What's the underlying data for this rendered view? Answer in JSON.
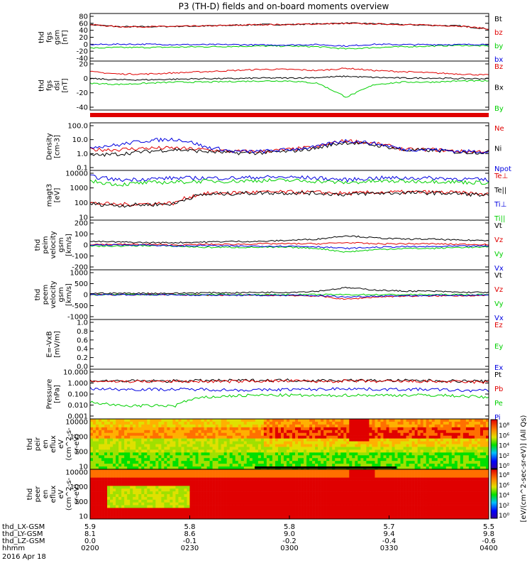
{
  "title": "P3 (TH-D) fields and on-board moments overview",
  "date": "2016 Apr 18",
  "colors": {
    "black": "#000000",
    "red": "#e00000",
    "blue": "#0000e0",
    "green": "#00d000"
  },
  "ephemeris": {
    "rows": [
      {
        "label": "thd_LX-GSM",
        "values": [
          "5.9",
          "5.8",
          "5.8",
          "5.7",
          "5.5"
        ]
      },
      {
        "label": "thd_LY-GSM",
        "values": [
          "8.1",
          "8.6",
          "9.0",
          "9.4",
          "9.8"
        ]
      },
      {
        "label": "thd_LZ-GSM",
        "values": [
          "0.0",
          "-0.1",
          "-0.2",
          "-0.4",
          "-0.6"
        ]
      },
      {
        "label": "hhmm",
        "values": [
          "0200",
          "0230",
          "0300",
          "0330",
          "0400"
        ]
      }
    ]
  },
  "colorbar": {
    "label": "[eV/(cm^2-sec-sr-eV)] (All Qs)",
    "upper_ticks": [
      "10⁸",
      "10⁶",
      "10⁴",
      "10²",
      "10⁰"
    ],
    "lower_ticks": [
      "10⁸",
      "10⁶",
      "10⁴",
      "10²",
      "10⁰"
    ]
  },
  "chart_data": [
    {
      "type": "line",
      "ylabel": [
        "thd",
        "fgs",
        "gsm",
        "[nT]"
      ],
      "yticks": [
        "80",
        "60",
        "40",
        "20",
        "0",
        "-20",
        "-40"
      ],
      "ylim": [
        -40,
        85
      ],
      "series": [
        {
          "name": "Bt",
          "color": "black",
          "values": [
            58,
            52,
            52,
            53,
            54,
            56,
            58,
            58,
            60,
            62,
            60,
            58,
            56,
            54,
            46
          ]
        },
        {
          "name": "bz",
          "color": "red",
          "values": [
            58,
            52,
            52,
            53,
            54,
            56,
            58,
            58,
            60,
            61,
            60,
            58,
            56,
            54,
            46
          ]
        },
        {
          "name": "by",
          "color": "green",
          "values": [
            -8,
            -6,
            -6,
            -5,
            -4,
            -3,
            -2,
            -2,
            -4,
            -10,
            -6,
            -4,
            -2,
            0,
            -2
          ]
        },
        {
          "name": "bx",
          "color": "blue",
          "values": [
            2,
            3,
            3,
            2,
            2,
            2,
            1,
            1,
            2,
            -2,
            3,
            2,
            2,
            2,
            3
          ]
        }
      ]
    },
    {
      "type": "line",
      "ylabel": [
        "thd",
        "fgs",
        "dsl",
        "[nT]"
      ],
      "yticks": [
        "20",
        "0",
        "-20",
        "-40"
      ],
      "ylim": [
        -50,
        30
      ],
      "series": [
        {
          "name": "Bz",
          "color": "red",
          "values": [
            14,
            10,
            10,
            12,
            14,
            16,
            18,
            18,
            16,
            20,
            16,
            14,
            12,
            10,
            8
          ]
        },
        {
          "name": "Bx",
          "color": "black",
          "values": [
            2,
            0,
            0,
            1,
            2,
            2,
            3,
            3,
            4,
            6,
            4,
            3,
            3,
            2,
            2
          ]
        },
        {
          "name": "By",
          "color": "green",
          "values": [
            -6,
            -8,
            -6,
            -4,
            -4,
            -3,
            -2,
            -2,
            -6,
            -30,
            -8,
            -4,
            -4,
            -2,
            -2
          ]
        }
      ]
    },
    {
      "type": "line",
      "ylabel": [
        "Density",
        "[cm-3]"
      ],
      "yticks": [
        "100.0",
        "10.0",
        "1.0",
        "0.1"
      ],
      "log": true,
      "ylim": [
        0.1,
        100
      ],
      "series": [
        {
          "name": "Ne",
          "color": "red",
          "values": [
            2,
            2,
            2.5,
            2.5,
            2,
            1.5,
            1.5,
            2,
            3,
            8,
            5,
            2,
            2,
            1.5,
            1.5
          ]
        },
        {
          "name": "Ni",
          "color": "black",
          "values": [
            0.8,
            1,
            1.5,
            2,
            1.5,
            1.2,
            1.2,
            1.5,
            2.5,
            6,
            4,
            1.8,
            1.8,
            1.3,
            1.3
          ]
        },
        {
          "name": "Npot",
          "color": "blue",
          "values": [
            3,
            4,
            8,
            10,
            3,
            1.5,
            1.5,
            2,
            3,
            8,
            5,
            2,
            2,
            1.5,
            1.5
          ]
        }
      ]
    },
    {
      "type": "line",
      "ylabel": [
        "magt3",
        "[eV]"
      ],
      "yticks": [
        "10000",
        "1000",
        "100",
        "10"
      ],
      "log": true,
      "ylim": [
        10,
        10000
      ],
      "series": [
        {
          "name": "Te⊥",
          "color": "red",
          "values": [
            100,
            80,
            90,
            100,
            400,
            450,
            500,
            500,
            480,
            400,
            480,
            500,
            500,
            450,
            350
          ]
        },
        {
          "name": "Te||",
          "color": "black",
          "values": [
            90,
            70,
            80,
            90,
            350,
            400,
            450,
            450,
            430,
            350,
            430,
            450,
            450,
            400,
            300
          ]
        },
        {
          "name": "Ti⊥",
          "color": "blue",
          "values": [
            5000,
            3000,
            3500,
            4000,
            4000,
            4000,
            4500,
            4500,
            4000,
            3000,
            4000,
            4000,
            4000,
            3500,
            3000
          ]
        },
        {
          "name": "Ti||",
          "color": "green",
          "values": [
            2500,
            1500,
            2000,
            2200,
            2500,
            2500,
            2800,
            2800,
            2500,
            2000,
            2500,
            2500,
            2500,
            2200,
            2000
          ]
        }
      ]
    },
    {
      "type": "line",
      "ylabel": [
        "thd",
        "peim",
        "velocity",
        "gsm",
        "[km/s]"
      ],
      "yticks": [
        "200",
        "100",
        "0",
        "-100",
        "-200"
      ],
      "ylim": [
        -200,
        200
      ],
      "series": [
        {
          "name": "Vt",
          "color": "black",
          "values": [
            30,
            25,
            20,
            20,
            25,
            30,
            30,
            40,
            50,
            80,
            60,
            50,
            50,
            40,
            40
          ]
        },
        {
          "name": "Vz",
          "color": "red",
          "values": [
            5,
            5,
            5,
            0,
            5,
            5,
            10,
            10,
            10,
            20,
            10,
            10,
            10,
            5,
            5
          ]
        },
        {
          "name": "Vy",
          "color": "green",
          "values": [
            -10,
            -10,
            -5,
            -10,
            -20,
            -20,
            -20,
            -20,
            -30,
            -60,
            -40,
            -30,
            -30,
            -20,
            -20
          ]
        },
        {
          "name": "Vx",
          "color": "blue",
          "values": [
            0,
            0,
            0,
            -10,
            -5,
            -10,
            -10,
            -10,
            -15,
            -30,
            -20,
            -15,
            -15,
            -10,
            -10
          ]
        }
      ]
    },
    {
      "type": "line",
      "ylabel": [
        "thd",
        "peem",
        "velocity",
        "gsm",
        "[km/s]"
      ],
      "yticks": [
        "1000",
        "500",
        "0",
        "-500",
        "-1000"
      ],
      "ylim": [
        -1000,
        1000
      ],
      "series": [
        {
          "name": "Vt",
          "color": "black",
          "values": [
            60,
            60,
            60,
            60,
            80,
            80,
            100,
            100,
            150,
            300,
            200,
            150,
            150,
            100,
            100
          ]
        },
        {
          "name": "Vz",
          "color": "red",
          "values": [
            0,
            0,
            0,
            0,
            -20,
            -20,
            -30,
            -30,
            -60,
            -200,
            -100,
            -60,
            -60,
            -40,
            -40
          ]
        },
        {
          "name": "Vy",
          "color": "green",
          "values": [
            0,
            0,
            0,
            0,
            0,
            0,
            0,
            0,
            0,
            0,
            0,
            0,
            0,
            0,
            0
          ]
        },
        {
          "name": "Vx",
          "color": "blue",
          "values": [
            0,
            0,
            0,
            -10,
            -20,
            -20,
            -30,
            -30,
            -40,
            -100,
            -60,
            -40,
            -40,
            -20,
            -20
          ]
        }
      ]
    },
    {
      "type": "line",
      "ylabel": [
        "E=-VxB",
        "[mV/m]"
      ],
      "yticks": [
        "1.0",
        "0.8",
        "0.6",
        "0.4",
        "0.2",
        "0.0"
      ],
      "ylim": [
        0,
        1
      ],
      "series": [
        {
          "name": "Ez",
          "color": "red",
          "values": []
        },
        {
          "name": "Ey",
          "color": "green",
          "values": []
        },
        {
          "name": "Ex",
          "color": "blue",
          "values": []
        }
      ]
    },
    {
      "type": "line",
      "ylabel": [
        "Pressure",
        "[nPa]"
      ],
      "yticks": [
        "10.000",
        "1.000",
        "0.100",
        "0.010",
        "0.001"
      ],
      "log": true,
      "ylim": [
        0.001,
        10
      ],
      "series": [
        {
          "name": "Pt",
          "color": "black",
          "values": [
            1.4,
            1.3,
            1.3,
            1.3,
            1.4,
            1.4,
            1.5,
            1.5,
            1.4,
            1.5,
            1.4,
            1.4,
            1.4,
            1.3,
            1.2
          ]
        },
        {
          "name": "Pb",
          "color": "red",
          "values": [
            1.3,
            1.2,
            1.2,
            1.2,
            1.2,
            1.2,
            1.3,
            1.3,
            1.2,
            1.3,
            1.2,
            1.2,
            1.2,
            1.1,
            1.0
          ]
        },
        {
          "name": "Pe",
          "color": "green",
          "values": [
            0.02,
            0.01,
            0.01,
            0.01,
            0.05,
            0.07,
            0.08,
            0.08,
            0.07,
            0.08,
            0.08,
            0.08,
            0.08,
            0.07,
            0.05
          ]
        },
        {
          "name": "Pi",
          "color": "blue",
          "values": [
            0.3,
            0.25,
            0.25,
            0.25,
            0.25,
            0.22,
            0.22,
            0.25,
            0.25,
            0.3,
            0.25,
            0.25,
            0.25,
            0.2,
            0.2
          ]
        }
      ]
    },
    {
      "type": "heatmap",
      "ylabel": [
        "thd",
        "peir",
        "en",
        "eflux",
        "eV",
        "(cm^2-s-",
        "sr-eV)"
      ],
      "yticks": [
        "10000",
        "1000",
        "100",
        "10"
      ],
      "log": true
    },
    {
      "type": "heatmap",
      "ylabel": [
        "thd",
        "peer",
        "en",
        "eflux",
        "eV",
        "(cm^2-s-",
        "sr-eV)"
      ],
      "yticks": [
        "10000",
        "1000",
        "100",
        "10"
      ],
      "log": true
    }
  ]
}
